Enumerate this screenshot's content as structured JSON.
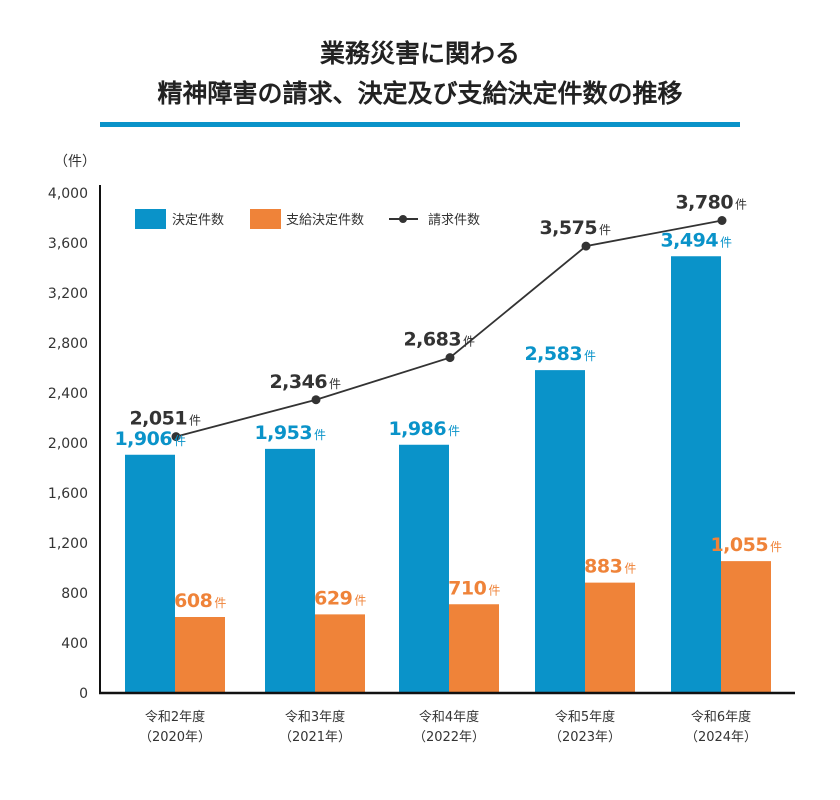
{
  "title": {
    "line1": "業務災害に関わる",
    "line2": "精神障害の請求、決定及び支給決定件数の推移"
  },
  "colors": {
    "accent": "#0a93c9",
    "decided": "#0a93c9",
    "paid": "#ef8339",
    "claims": "#333333",
    "axis": "#111111"
  },
  "chart_data": {
    "type": "bar",
    "title": "業務災害に関わる 精神障害の請求、決定及び支給決定件数の推移",
    "ylabel": "（件）",
    "ylim": [
      0,
      4000
    ],
    "yticks": [
      0,
      400,
      800,
      1200,
      1600,
      2000,
      2400,
      2800,
      3200,
      3600,
      4000
    ],
    "grid": false,
    "legend_position": "top-left",
    "unit": "件",
    "categories": [
      {
        "era": "令和2年度",
        "year": "（2020年）"
      },
      {
        "era": "令和3年度",
        "year": "（2021年）"
      },
      {
        "era": "令和4年度",
        "year": "（2022年）"
      },
      {
        "era": "令和5年度",
        "year": "（2023年）"
      },
      {
        "era": "令和6年度",
        "year": "（2024年）"
      }
    ],
    "series": [
      {
        "name": "決定件数",
        "type": "bar",
        "color": "#0a93c9",
        "values": [
          1906,
          1953,
          1986,
          2583,
          3494
        ],
        "labels": [
          "1,906",
          "1,953",
          "1,986",
          "2,583",
          "3,494"
        ]
      },
      {
        "name": "支給決定件数",
        "type": "bar",
        "color": "#ef8339",
        "values": [
          608,
          629,
          710,
          883,
          1055
        ],
        "labels": [
          "608",
          "629",
          "710",
          "883",
          "1,055"
        ]
      },
      {
        "name": "請求件数",
        "type": "line",
        "color": "#333333",
        "values": [
          2051,
          2346,
          2683,
          3575,
          3780
        ],
        "labels": [
          "2,051",
          "2,346",
          "2,683",
          "3,575",
          "3,780"
        ]
      }
    ]
  }
}
